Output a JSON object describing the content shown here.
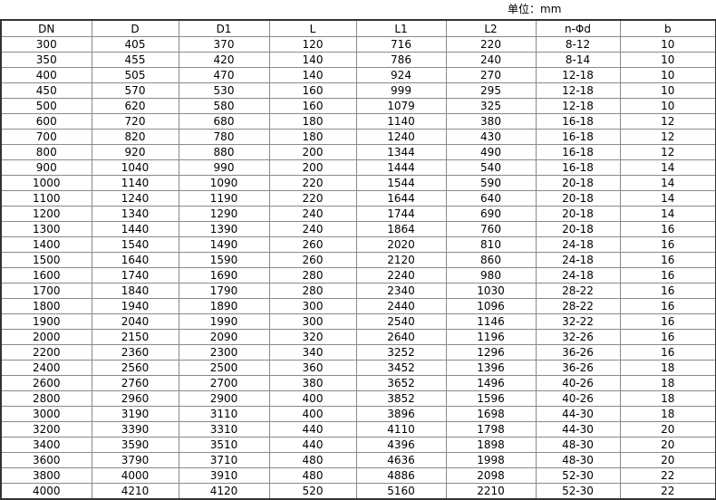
{
  "unit_label": "单位：mm",
  "table": {
    "headers": [
      "DN",
      "D",
      "D1",
      "L",
      "L1",
      "L2",
      "n-Φd",
      "b"
    ],
    "rows": [
      [
        "300",
        "405",
        "370",
        "120",
        "716",
        "220",
        "8-12",
        "10"
      ],
      [
        "350",
        "455",
        "420",
        "140",
        "786",
        "240",
        "8-14",
        "10"
      ],
      [
        "400",
        "505",
        "470",
        "140",
        "924",
        "270",
        "12-18",
        "10"
      ],
      [
        "450",
        "570",
        "530",
        "160",
        "999",
        "295",
        "12-18",
        "10"
      ],
      [
        "500",
        "620",
        "580",
        "160",
        "1079",
        "325",
        "12-18",
        "10"
      ],
      [
        "600",
        "720",
        "680",
        "180",
        "1140",
        "380",
        "16-18",
        "12"
      ],
      [
        "700",
        "820",
        "780",
        "180",
        "1240",
        "430",
        "16-18",
        "12"
      ],
      [
        "800",
        "920",
        "880",
        "200",
        "1344",
        "490",
        "16-18",
        "12"
      ],
      [
        "900",
        "1040",
        "990",
        "200",
        "1444",
        "540",
        "16-18",
        "14"
      ],
      [
        "1000",
        "1140",
        "1090",
        "220",
        "1544",
        "590",
        "20-18",
        "14"
      ],
      [
        "1100",
        "1240",
        "1190",
        "220",
        "1644",
        "640",
        "20-18",
        "14"
      ],
      [
        "1200",
        "1340",
        "1290",
        "240",
        "1744",
        "690",
        "20-18",
        "14"
      ],
      [
        "1300",
        "1440",
        "1390",
        "240",
        "1864",
        "760",
        "20-18",
        "16"
      ],
      [
        "1400",
        "1540",
        "1490",
        "260",
        "2020",
        "810",
        "24-18",
        "16"
      ],
      [
        "1500",
        "1640",
        "1590",
        "260",
        "2120",
        "860",
        "24-18",
        "16"
      ],
      [
        "1600",
        "1740",
        "1690",
        "280",
        "2240",
        "980",
        "24-18",
        "16"
      ],
      [
        "1700",
        "1840",
        "1790",
        "280",
        "2340",
        "1030",
        "28-22",
        "16"
      ],
      [
        "1800",
        "1940",
        "1890",
        "300",
        "2440",
        "1096",
        "28-22",
        "16"
      ],
      [
        "1900",
        "2040",
        "1990",
        "300",
        "2540",
        "1146",
        "32-22",
        "16"
      ],
      [
        "2000",
        "2150",
        "2090",
        "320",
        "2640",
        "1196",
        "32-26",
        "16"
      ],
      [
        "2200",
        "2360",
        "2300",
        "340",
        "3252",
        "1296",
        "36-26",
        "16"
      ],
      [
        "2400",
        "2560",
        "2500",
        "360",
        "3452",
        "1396",
        "36-26",
        "18"
      ],
      [
        "2600",
        "2760",
        "2700",
        "380",
        "3652",
        "1496",
        "40-26",
        "18"
      ],
      [
        "2800",
        "2960",
        "2900",
        "400",
        "3852",
        "1596",
        "40-26",
        "18"
      ],
      [
        "3000",
        "3190",
        "3110",
        "400",
        "3896",
        "1698",
        "44-30",
        "18"
      ],
      [
        "3200",
        "3390",
        "3310",
        "440",
        "4110",
        "1798",
        "44-30",
        "20"
      ],
      [
        "3400",
        "3590",
        "3510",
        "440",
        "4396",
        "1898",
        "48-30",
        "20"
      ],
      [
        "3600",
        "3790",
        "3710",
        "480",
        "4636",
        "1998",
        "48-30",
        "20"
      ],
      [
        "3800",
        "4000",
        "3910",
        "480",
        "4886",
        "2098",
        "52-30",
        "22"
      ],
      [
        "4000",
        "4210",
        "4120",
        "520",
        "5160",
        "2210",
        "52-30",
        "22"
      ]
    ]
  }
}
